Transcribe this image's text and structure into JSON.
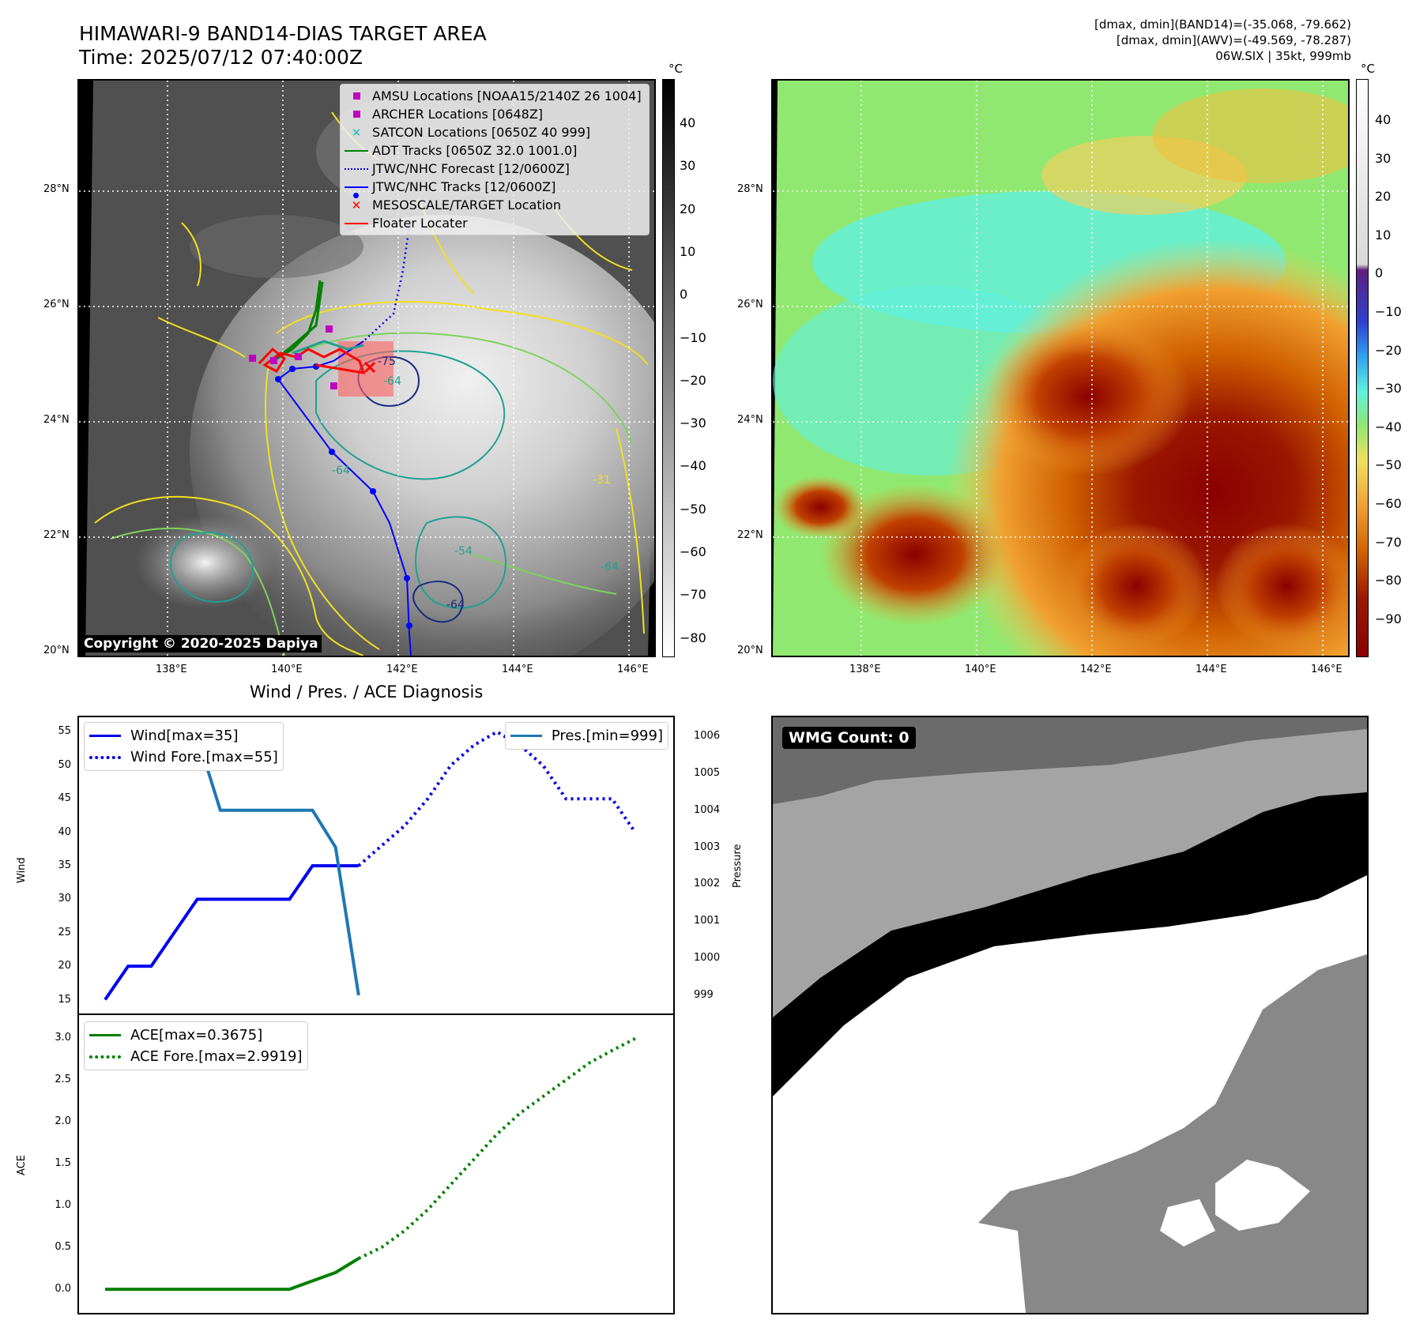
{
  "header": {
    "title_line1": "HIMAWARI-9 BAND14-DIAS TARGET AREA",
    "title_line2": "Time: 2025/07/12 07:40:00Z",
    "info_line1": "[dmax, dmin](BAND14)=(-35.068, -79.662)",
    "info_line2": "[dmax, dmin](AWV)=(-49.569, -78.287)",
    "info_line3": "06W.SIX | 35kt, 999mb"
  },
  "maps": {
    "lat_labels": [
      "28°N",
      "26°N",
      "24°N",
      "22°N",
      "20°N"
    ],
    "lon_labels": [
      "138°E",
      "140°E",
      "142°E",
      "144°E",
      "146°E"
    ],
    "colorbar_unit": "°C",
    "gray_colorbar_ticks": [
      "40",
      "30",
      "20",
      "10",
      "0",
      "−10",
      "−20",
      "−30",
      "−40",
      "−50",
      "−60",
      "−70",
      "−80"
    ],
    "color_colorbar_ticks": [
      "40",
      "30",
      "20",
      "10",
      "0",
      "−10",
      "−20",
      "−30",
      "−40",
      "−50",
      "−60",
      "−70",
      "−80",
      "−90"
    ],
    "copyright": "Copyright © 2020-2025 Dapiya",
    "contour_labels": [
      "-64",
      "-64",
      "-54",
      "-31",
      "-64",
      "-64",
      "-75"
    ],
    "legend": [
      {
        "label": "AMSU Locations [NOAA15/2140Z 26 1004]",
        "symbol": "square",
        "color": "#c000c0"
      },
      {
        "label": "ARCHER Locations [0648Z]",
        "symbol": "square",
        "color": "#c000c0"
      },
      {
        "label": "SATCON Locations [0650Z 40 999]",
        "symbol": "x",
        "color": "#20c0c0"
      },
      {
        "label": "ADT Tracks [0650Z 32.0 1001.0]",
        "symbol": "line",
        "color": "#008000"
      },
      {
        "label": "JTWC/NHC Forecast [12/0600Z]",
        "symbol": "dotted",
        "color": "#0000ff"
      },
      {
        "label": "JTWC/NHC Tracks [12/0600Z]",
        "symbol": "line-dot",
        "color": "#0000ff"
      },
      {
        "label": "MESOSCALE/TARGET Location",
        "symbol": "x",
        "color": "#ff0000"
      },
      {
        "label": "Floater Locater",
        "symbol": "line",
        "color": "#ff0000"
      }
    ]
  },
  "diagnosis": {
    "title": "Wind / Pres. / ACE Diagnosis",
    "wind_ylabel": "Wind",
    "pres_ylabel": "Pressure",
    "ace_ylabel": "ACE",
    "legend_wind": "Wind[max=35]",
    "legend_wind_fore": "Wind Fore.[max=55]",
    "legend_pres": "Pres.[min=999]",
    "legend_ace": "ACE[max=0.3675]",
    "legend_ace_fore": "ACE Fore.[max=2.9919]",
    "colors": {
      "wind": "#0000ee",
      "pres": "#1f77b4",
      "ace": "#008000"
    }
  },
  "wmg": {
    "badge": "WMG Count: 0",
    "colors": {
      "dark": "#6b6b6b",
      "light": "#a4a4a4",
      "black": "#000000",
      "white": "#ffffff",
      "mid": "#888888"
    }
  },
  "chart_data": [
    {
      "type": "line",
      "panel": "wind-pressure",
      "xlim": [
        0,
        24
      ],
      "series": [
        {
          "name": "Wind[max=35]",
          "axis": "left",
          "x": [
            0,
            1,
            2,
            3,
            4,
            5,
            6,
            7,
            8,
            9,
            10,
            11
          ],
          "values": [
            15,
            20,
            20,
            25,
            30,
            30,
            30,
            30,
            30,
            35,
            35,
            35
          ]
        },
        {
          "name": "Wind Fore.[max=55]",
          "axis": "left",
          "x": [
            11,
            12,
            13,
            14,
            15,
            16,
            17,
            18,
            19,
            20,
            21,
            22,
            23
          ],
          "values": [
            35,
            38,
            41,
            45,
            50,
            53,
            55,
            53,
            50,
            45,
            45,
            45,
            40
          ]
        },
        {
          "name": "Pres.[min=999]",
          "axis": "right",
          "x": [
            0,
            1,
            2,
            3,
            4,
            5,
            6,
            7,
            8,
            9,
            10,
            11
          ],
          "values": [
            1006,
            1006,
            1006,
            1006,
            1006,
            1004,
            1004,
            1004,
            1004,
            1004,
            1003,
            999
          ]
        }
      ],
      "yticks_left": [
        15,
        20,
        25,
        30,
        35,
        40,
        45,
        50,
        55
      ],
      "yticks_right": [
        999,
        1000,
        1001,
        1002,
        1003,
        1004,
        1005,
        1006
      ],
      "ylim": [
        14,
        56
      ],
      "ylim_right": [
        998.7,
        1006.3
      ]
    },
    {
      "type": "line",
      "panel": "ace",
      "xlim": [
        0,
        24
      ],
      "series": [
        {
          "name": "ACE[max=0.3675]",
          "x": [
            0,
            1,
            2,
            3,
            4,
            5,
            6,
            7,
            8,
            9,
            10,
            11
          ],
          "values": [
            0,
            0,
            0,
            0,
            0,
            0,
            0,
            0,
            0,
            0.1,
            0.2,
            0.3675
          ]
        },
        {
          "name": "ACE Fore.[max=2.9919]",
          "x": [
            11,
            12,
            13,
            14,
            15,
            16,
            17,
            18,
            19,
            20,
            21,
            22,
            23
          ],
          "values": [
            0.3675,
            0.5,
            0.7,
            0.95,
            1.25,
            1.55,
            1.85,
            2.1,
            2.3,
            2.5,
            2.7,
            2.85,
            2.9919
          ]
        }
      ],
      "yticks": [
        0.0,
        0.5,
        1.0,
        1.5,
        2.0,
        2.5,
        3.0
      ],
      "ylim": [
        -0.15,
        3.15
      ]
    }
  ]
}
